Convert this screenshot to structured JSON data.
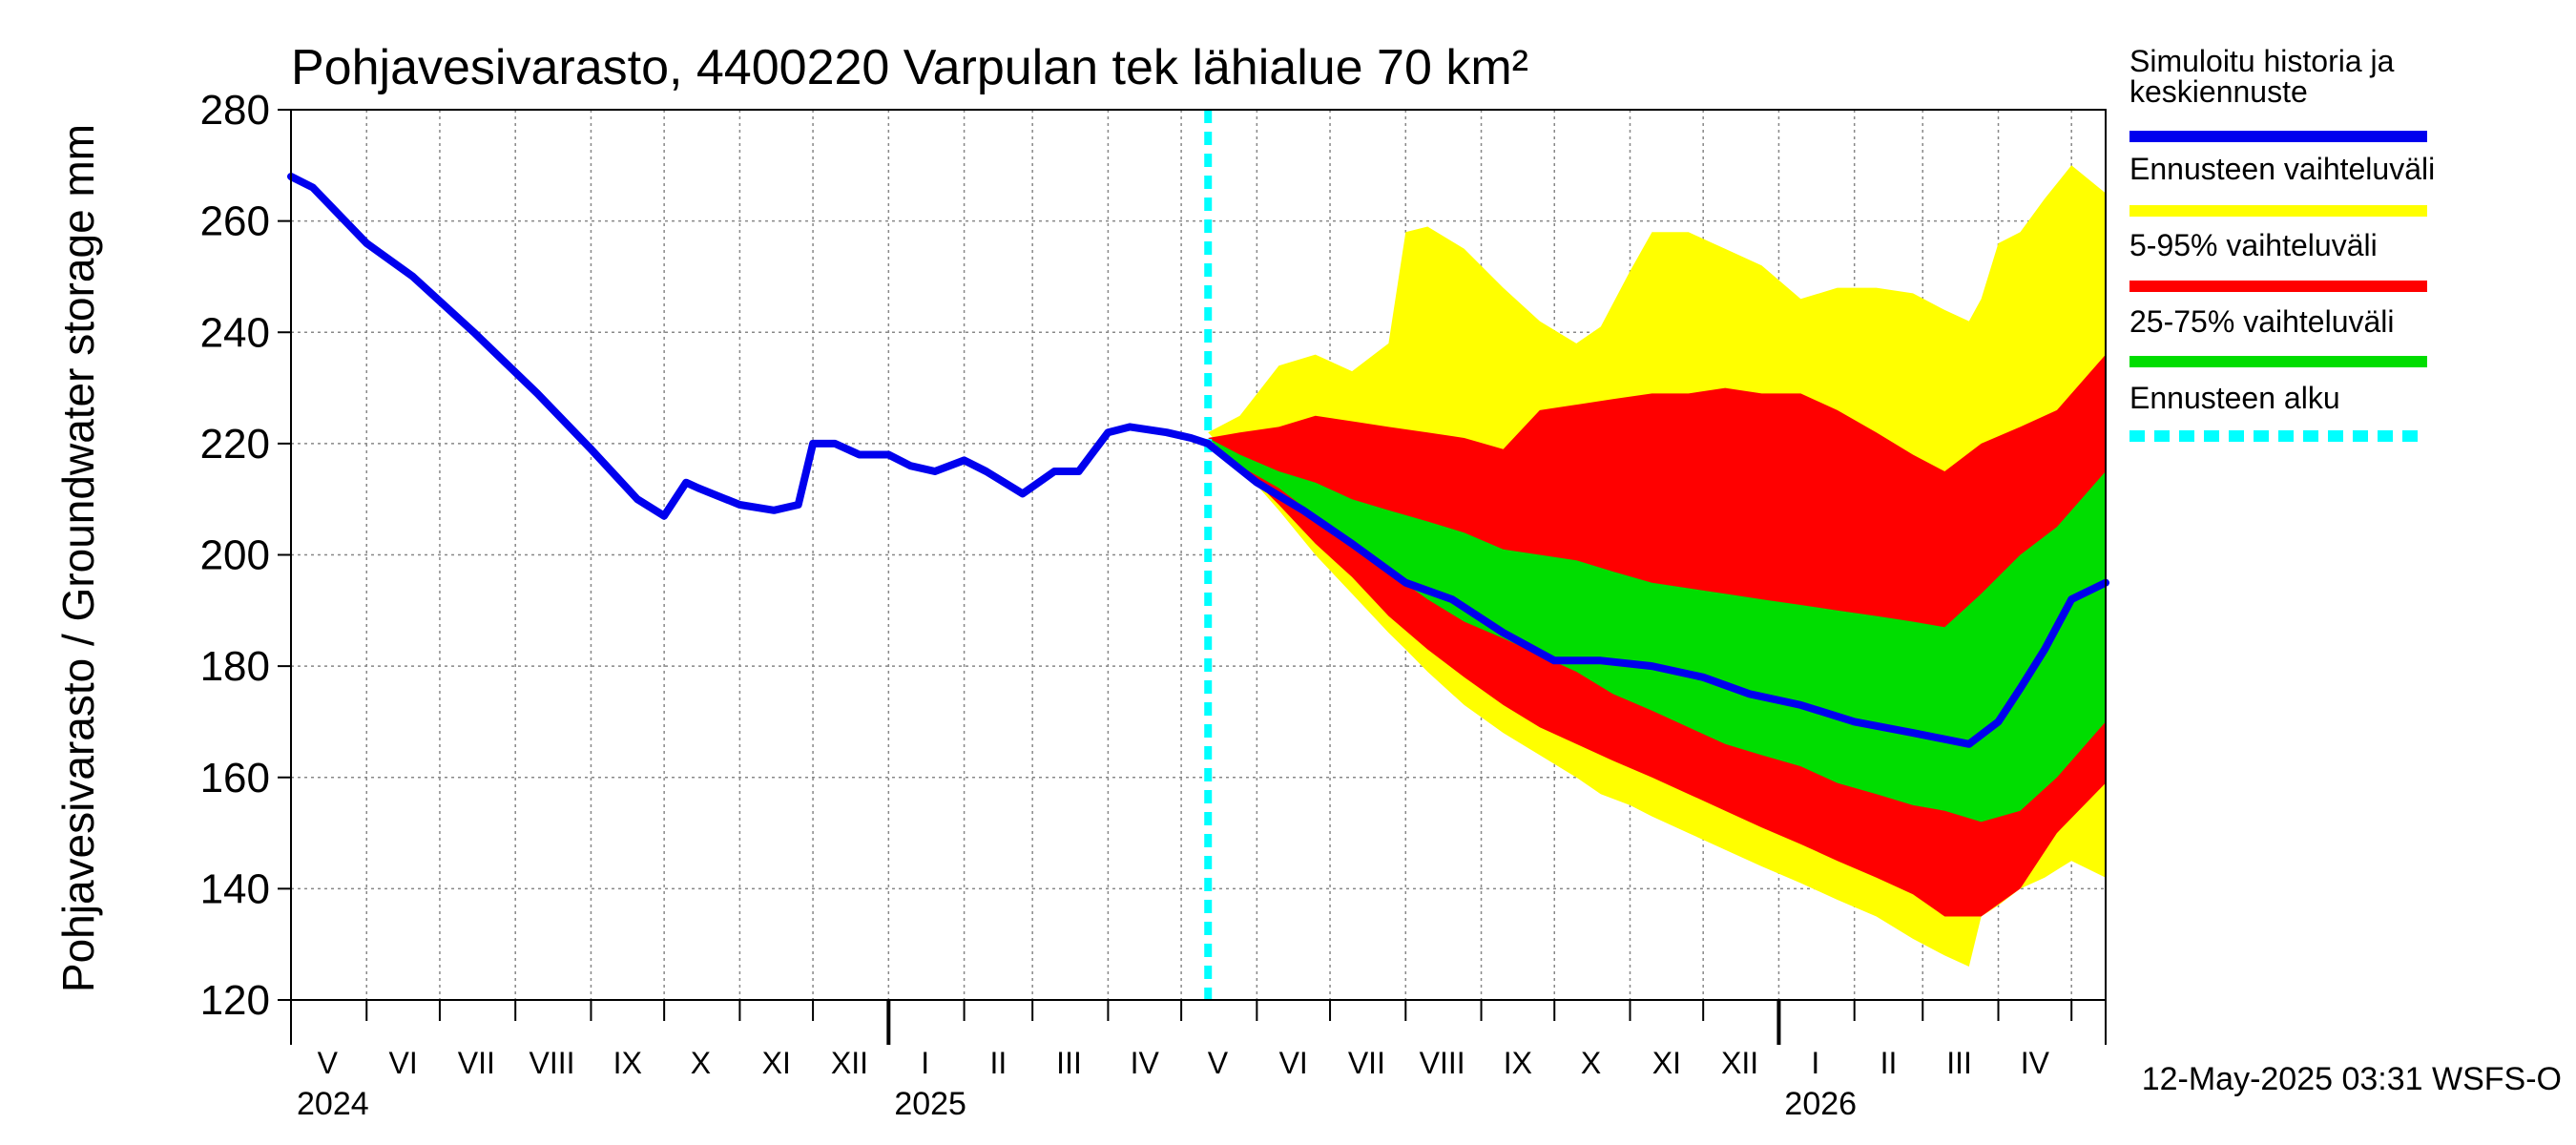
{
  "chart_data": {
    "type": "area",
    "title": "Pohjavesivarasto, 4400220 Varpulan tek lähialue 70 km²",
    "ylabel": "Pohjavesivarasto / Groundwater storage   mm",
    "ylim": [
      120,
      280
    ],
    "y_ticks": [
      120,
      140,
      160,
      180,
      200,
      220,
      240,
      260,
      280
    ],
    "xlim": [
      "2024-05-01",
      "2026-05-15"
    ],
    "grid": true,
    "forecast_start": "2025-05-12",
    "month_labels": [
      {
        "label": "V",
        "date": "2024-05-16"
      },
      {
        "label": "VI",
        "date": "2024-06-16"
      },
      {
        "label": "VII",
        "date": "2024-07-16"
      },
      {
        "label": "VIII",
        "date": "2024-08-16"
      },
      {
        "label": "IX",
        "date": "2024-09-16"
      },
      {
        "label": "X",
        "date": "2024-10-16"
      },
      {
        "label": "XI",
        "date": "2024-11-16"
      },
      {
        "label": "XII",
        "date": "2024-12-16"
      },
      {
        "label": "I",
        "date": "2025-01-16"
      },
      {
        "label": "II",
        "date": "2025-02-15"
      },
      {
        "label": "III",
        "date": "2025-03-16"
      },
      {
        "label": "IV",
        "date": "2025-04-16"
      },
      {
        "label": "V",
        "date": "2025-05-16"
      },
      {
        "label": "VI",
        "date": "2025-06-16"
      },
      {
        "label": "VII",
        "date": "2025-07-16"
      },
      {
        "label": "VIII",
        "date": "2025-08-16"
      },
      {
        "label": "IX",
        "date": "2025-09-16"
      },
      {
        "label": "X",
        "date": "2025-10-16"
      },
      {
        "label": "XI",
        "date": "2025-11-16"
      },
      {
        "label": "XII",
        "date": "2025-12-16"
      },
      {
        "label": "I",
        "date": "2026-01-16"
      },
      {
        "label": "II",
        "date": "2026-02-15"
      },
      {
        "label": "III",
        "date": "2026-03-16"
      },
      {
        "label": "IV",
        "date": "2026-04-16"
      }
    ],
    "year_labels": [
      {
        "label": "2024",
        "date": "2024-05-01"
      },
      {
        "label": "2025",
        "date": "2025-01-01"
      },
      {
        "label": "2026",
        "date": "2026-01-01"
      }
    ],
    "series": [
      {
        "name": "Ennusteen vaihteluväli",
        "color": "#ffff00",
        "kind": "band",
        "x": [
          "2025-05-12",
          "2025-05-25",
          "2025-06-10",
          "2025-06-25",
          "2025-07-10",
          "2025-07-25",
          "2025-08-01",
          "2025-08-10",
          "2025-08-25",
          "2025-09-10",
          "2025-09-25",
          "2025-10-10",
          "2025-10-20",
          "2025-11-01",
          "2025-11-10",
          "2025-11-25",
          "2025-12-10",
          "2025-12-25",
          "2026-01-10",
          "2026-01-25",
          "2026-02-10",
          "2026-02-25",
          "2026-03-10",
          "2026-03-20",
          "2026-03-25",
          "2026-04-01",
          "2026-04-10",
          "2026-04-20",
          "2026-05-01",
          "2026-05-15"
        ],
        "upper": [
          222,
          225,
          234,
          236,
          233,
          238,
          258,
          259,
          255,
          248,
          242,
          238,
          241,
          251,
          258,
          258,
          255,
          252,
          246,
          248,
          248,
          247,
          244,
          242,
          246,
          256,
          258,
          264,
          270,
          265
        ],
        "lower": [
          222,
          216,
          208,
          200,
          193,
          186,
          183,
          179,
          173,
          168,
          164,
          160,
          157,
          155,
          153,
          150,
          147,
          144,
          141,
          138,
          135,
          131,
          128,
          126,
          135,
          137,
          140,
          142,
          145,
          142
        ]
      },
      {
        "name": "5-95% vaihteluväli",
        "color": "#ff0000",
        "kind": "band",
        "x": [
          "2025-05-12",
          "2025-05-25",
          "2025-06-10",
          "2025-06-25",
          "2025-07-10",
          "2025-07-25",
          "2025-08-10",
          "2025-08-25",
          "2025-09-10",
          "2025-09-25",
          "2025-10-10",
          "2025-10-25",
          "2025-11-10",
          "2025-11-25",
          "2025-12-10",
          "2025-12-25",
          "2026-01-10",
          "2026-01-25",
          "2026-02-10",
          "2026-02-25",
          "2026-03-10",
          "2026-03-25",
          "2026-04-10",
          "2026-04-25",
          "2026-05-15"
        ],
        "upper": [
          221,
          222,
          223,
          225,
          224,
          223,
          222,
          221,
          219,
          226,
          227,
          228,
          229,
          229,
          230,
          229,
          229,
          226,
          222,
          218,
          215,
          220,
          223,
          226,
          236
        ],
        "lower": [
          221,
          216,
          209,
          202,
          196,
          189,
          183,
          178,
          173,
          169,
          166,
          163,
          160,
          157,
          154,
          151,
          148,
          145,
          142,
          139,
          135,
          135,
          140,
          150,
          159
        ]
      },
      {
        "name": "25-75% vaihteluväli",
        "color": "#00dd00",
        "kind": "band",
        "x": [
          "2025-05-12",
          "2025-05-25",
          "2025-06-10",
          "2025-06-25",
          "2025-07-10",
          "2025-07-25",
          "2025-08-10",
          "2025-08-25",
          "2025-09-10",
          "2025-09-25",
          "2025-10-10",
          "2025-10-25",
          "2025-11-10",
          "2025-11-25",
          "2025-12-10",
          "2025-12-25",
          "2026-01-10",
          "2026-01-25",
          "2026-02-10",
          "2026-02-25",
          "2026-03-10",
          "2026-03-25",
          "2026-04-10",
          "2026-04-25",
          "2026-05-15"
        ],
        "upper": [
          221,
          218,
          215,
          213,
          210,
          208,
          206,
          204,
          201,
          200,
          199,
          197,
          195,
          194,
          193,
          192,
          191,
          190,
          189,
          188,
          187,
          193,
          200,
          205,
          215
        ],
        "lower": [
          221,
          216,
          212,
          207,
          202,
          197,
          192,
          188,
          185,
          182,
          179,
          175,
          172,
          169,
          166,
          164,
          162,
          159,
          157,
          155,
          154,
          152,
          154,
          160,
          170
        ]
      },
      {
        "name": "Simuloitu historia ja keskiennuste",
        "color": "#0000ee",
        "kind": "line",
        "x": [
          "2024-05-01",
          "2024-05-10",
          "2024-06-01",
          "2024-06-20",
          "2024-07-15",
          "2024-08-10",
          "2024-09-01",
          "2024-09-20",
          "2024-10-01",
          "2024-10-10",
          "2024-10-15",
          "2024-11-01",
          "2024-11-15",
          "2024-11-25",
          "2024-12-01",
          "2024-12-10",
          "2024-12-20",
          "2025-01-01",
          "2025-01-10",
          "2025-01-20",
          "2025-02-01",
          "2025-02-10",
          "2025-02-25",
          "2025-03-10",
          "2025-03-20",
          "2025-04-01",
          "2025-04-10",
          "2025-04-25",
          "2025-05-05",
          "2025-05-12",
          "2025-06-01",
          "2025-06-20",
          "2025-07-10",
          "2025-08-01",
          "2025-08-20",
          "2025-09-10",
          "2025-10-01",
          "2025-10-20",
          "2025-11-10",
          "2025-12-01",
          "2025-12-20",
          "2026-01-10",
          "2026-02-01",
          "2026-02-25",
          "2026-03-20",
          "2026-04-01",
          "2026-04-10",
          "2026-04-20",
          "2026-05-01",
          "2026-05-15"
        ],
        "values": [
          268,
          266,
          256,
          250,
          240,
          229,
          219,
          210,
          207,
          213,
          212,
          209,
          208,
          209,
          220,
          220,
          218,
          218,
          216,
          215,
          217,
          215,
          211,
          215,
          215,
          222,
          223,
          222,
          221,
          220,
          213,
          208,
          202,
          195,
          192,
          186,
          181,
          181,
          180,
          178,
          175,
          173,
          170,
          168,
          166,
          170,
          176,
          183,
          192,
          195
        ]
      }
    ],
    "legend": [
      {
        "label": "Simuloitu historia ja keskiennuste",
        "color": "#0000ee",
        "style": "solid"
      },
      {
        "label": "Ennusteen vaihteluväli",
        "color": "#ffff00",
        "style": "solid"
      },
      {
        "label": "5-95% vaihteluväli",
        "color": "#ff0000",
        "style": "solid"
      },
      {
        "label": "25-75% vaihteluväli",
        "color": "#00dd00",
        "style": "solid"
      },
      {
        "label": "Ennusteen alku",
        "color": "#00ffff",
        "style": "dashed"
      }
    ],
    "legend_position": "right",
    "footer": "12-May-2025 03:31 WSFS-O"
  }
}
